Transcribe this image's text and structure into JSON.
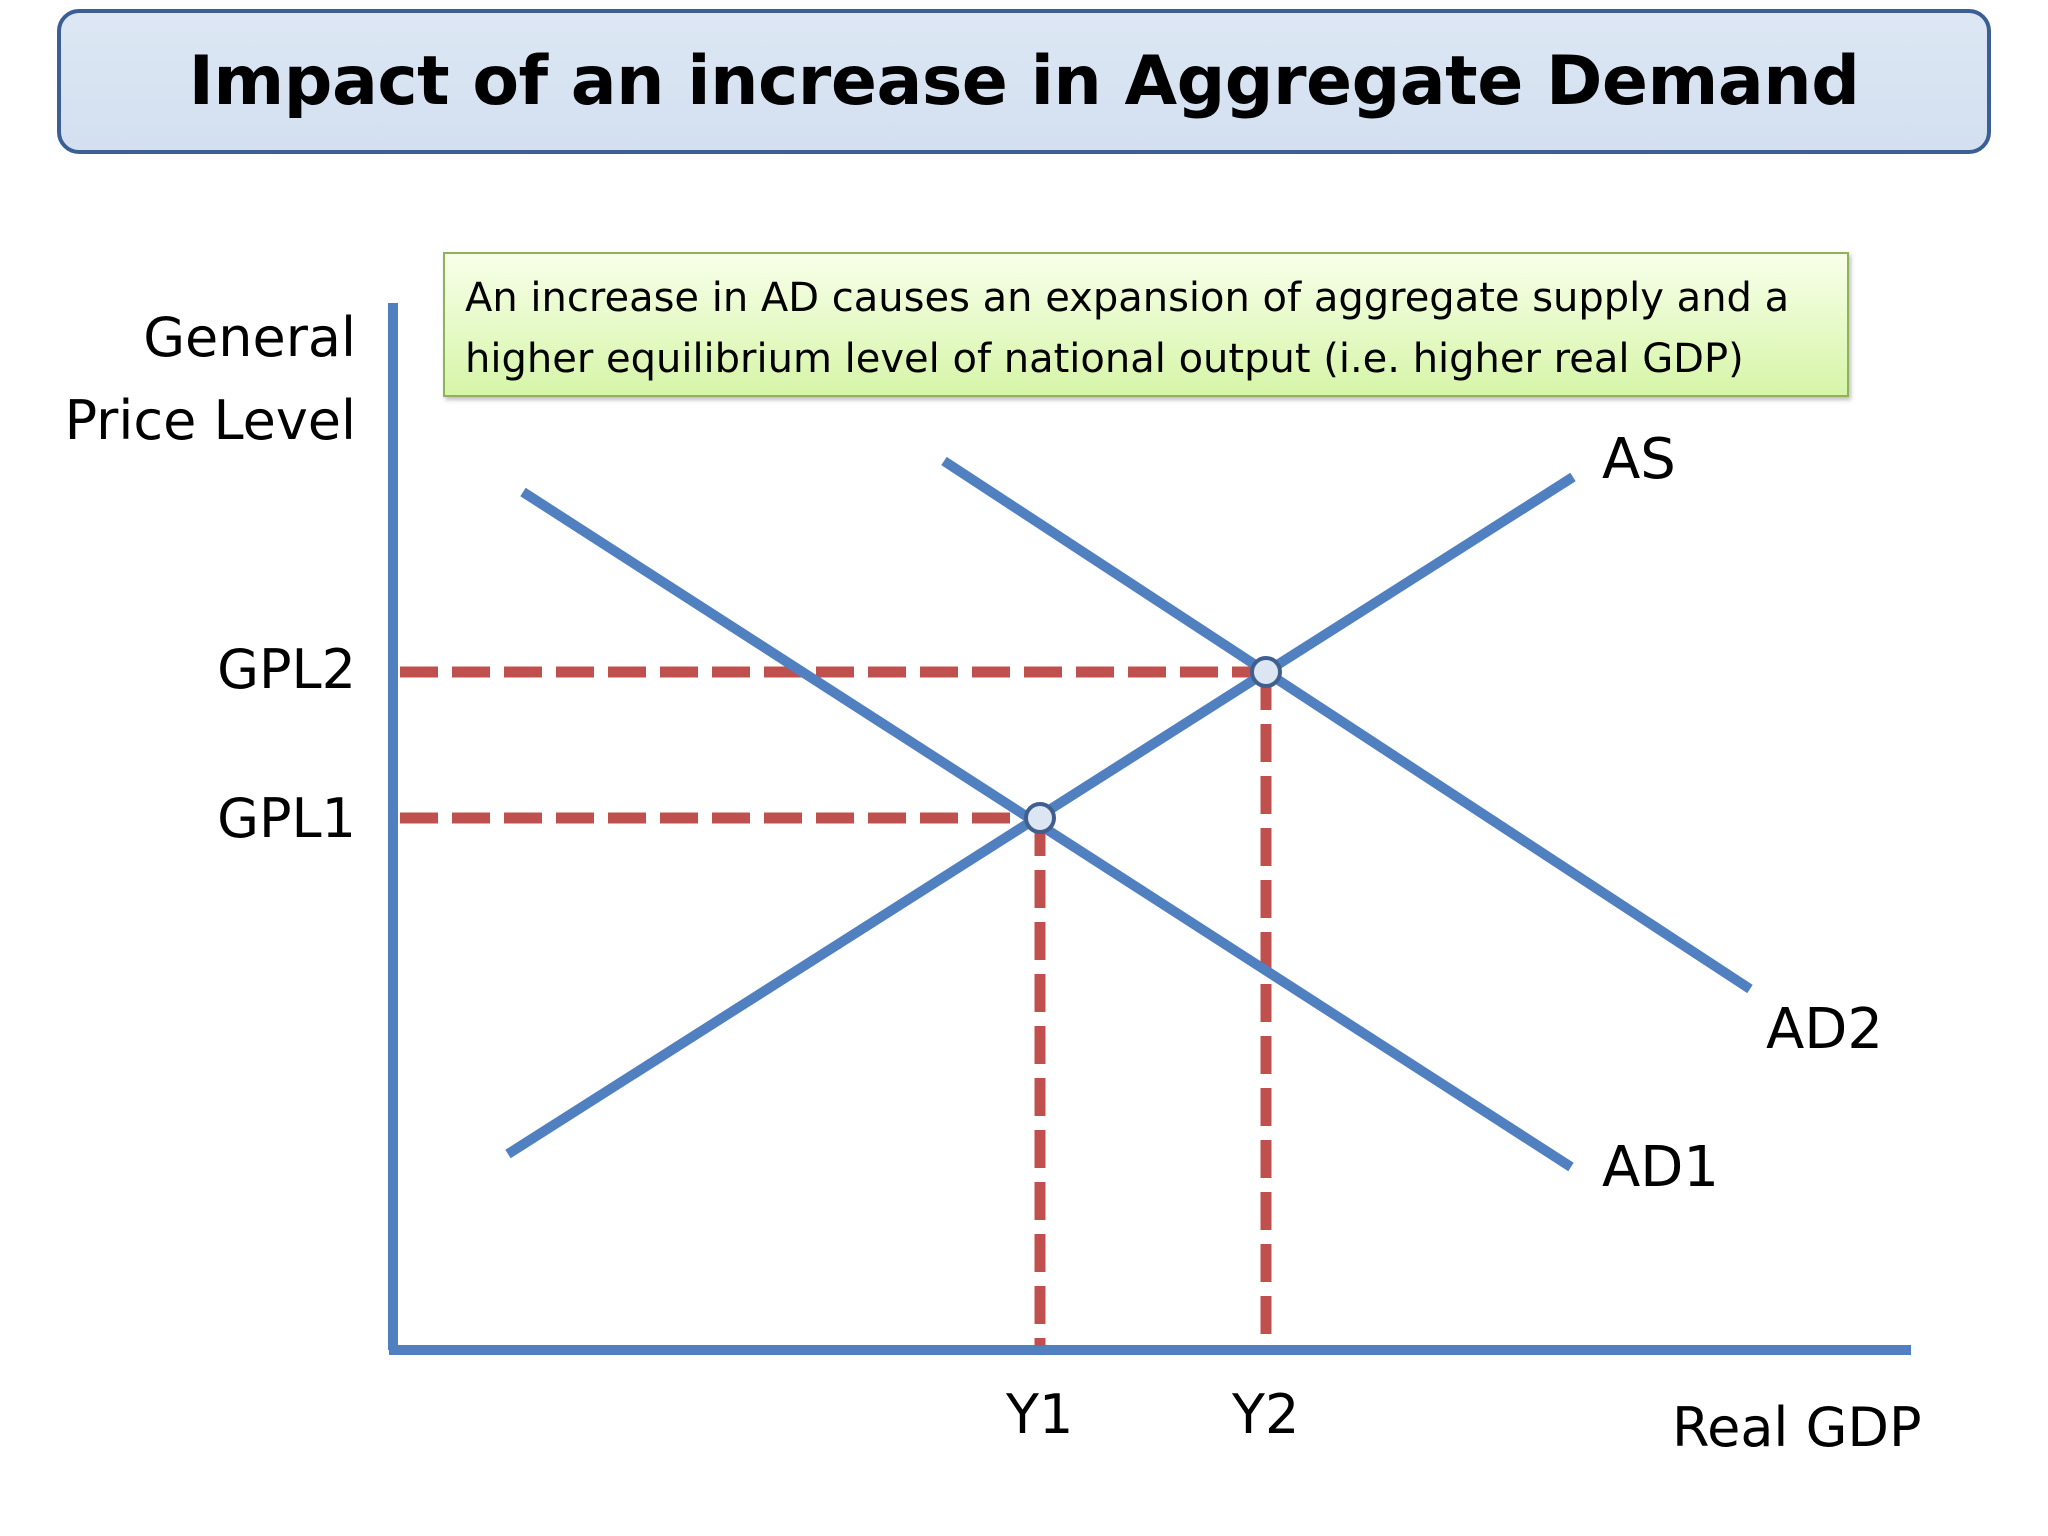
{
  "title": "Impact of an increase in Aggregate Demand",
  "note": {
    "line1": "An increase in AD causes an expansion of aggregate supply and a",
    "line2": "higher equilibrium level of national output (i.e. higher real GDP)"
  },
  "axes": {
    "y_label_line1": "General",
    "y_label_line2": "Price Level",
    "x_label": "Real GDP"
  },
  "y_ticks": {
    "gpl2": "GPL2",
    "gpl1": "GPL1"
  },
  "x_ticks": {
    "y1": "Y1",
    "y2": "Y2"
  },
  "curves": {
    "as": "AS",
    "ad1": "AD1",
    "ad2": "AD2"
  },
  "colors": {
    "curve": "#5080c0",
    "axis": "#5080c0",
    "guide": "#c0504d",
    "title_border": "#3b5f95",
    "title_fill": "#dbe5f2",
    "note_fill": "#e4f9c4",
    "note_border": "#8fb35a"
  }
}
